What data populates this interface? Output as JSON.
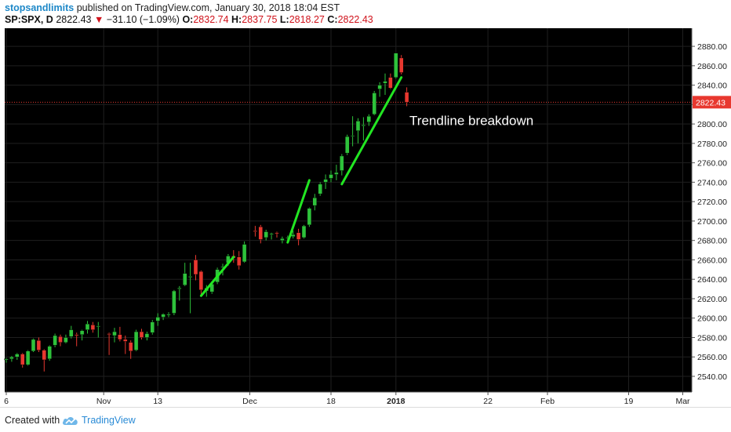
{
  "header": {
    "author": "stopsandlimits",
    "published": " published on TradingView.com, January 30, 2018 18:04 EST",
    "symbol": "SP:SPX, D",
    "last": "2822.43",
    "change_arrow": "▼",
    "change": "−31.10 (−1.09%)",
    "o_label": "O:",
    "o": "2832.74",
    "h_label": "H:",
    "h": "2837.75",
    "l_label": "L:",
    "l": "2818.27",
    "c_label": "C:",
    "c": "2822.43"
  },
  "footer": {
    "created_with": "Created with",
    "brand": "TradingView"
  },
  "colors": {
    "up": "#2ec23b",
    "down": "#e8382f",
    "trend": "#22e622",
    "bg": "#000000",
    "price_badge": "#e8382f"
  },
  "chart_data": {
    "type": "candlestick",
    "ylim": [
      2520,
      2890
    ],
    "yticks": [
      2540,
      2560,
      2580,
      2600,
      2620,
      2640,
      2660,
      2680,
      2700,
      2720,
      2740,
      2760,
      2780,
      2800,
      2820,
      2840,
      2860,
      2880
    ],
    "last_price": 2822.43,
    "last_price_label": "2822.43",
    "x_labels": [
      {
        "i": 0,
        "label": "6"
      },
      {
        "i": 18,
        "label": "Nov"
      },
      {
        "i": 28,
        "label": "13"
      },
      {
        "i": 45,
        "label": "Dec"
      },
      {
        "i": 60,
        "label": "18"
      },
      {
        "i": 72,
        "label": "2018"
      },
      {
        "i": 89,
        "label": "22"
      },
      {
        "i": 100,
        "label": "Feb"
      },
      {
        "i": 115,
        "label": "19"
      },
      {
        "i": 125,
        "label": "Mar"
      }
    ],
    "candles": [
      [
        2557,
        2559,
        2554,
        2558
      ],
      [
        2558,
        2561,
        2555,
        2560
      ],
      [
        2560,
        2564,
        2557,
        2563
      ],
      [
        2563,
        2564,
        2549,
        2552
      ],
      [
        2552,
        2567,
        2551,
        2566
      ],
      [
        2566,
        2579,
        2565,
        2578
      ],
      [
        2577,
        2580,
        2565,
        2567
      ],
      [
        2567,
        2568,
        2545,
        2557
      ],
      [
        2558,
        2572,
        2556,
        2571
      ],
      [
        2572,
        2584,
        2570,
        2582
      ],
      [
        2581,
        2583,
        2571,
        2575
      ],
      [
        2575,
        2583,
        2574,
        2580
      ],
      [
        2581,
        2592,
        2579,
        2588
      ],
      [
        2583,
        2585,
        2571,
        2582
      ],
      [
        2583,
        2588,
        2577,
        2587
      ],
      [
        2588,
        2597,
        2584,
        2594
      ],
      [
        2593,
        2596,
        2585,
        2588
      ],
      [
        2591,
        2596,
        2580,
        2592
      ],
      [
        2584,
        2585,
        2562,
        2583
      ],
      [
        2582,
        2590,
        2575,
        2586
      ],
      [
        2583,
        2591,
        2576,
        2578
      ],
      [
        2578,
        2582,
        2563,
        2576
      ],
      [
        2575,
        2577,
        2558,
        2566
      ],
      [
        2567,
        2588,
        2566,
        2586
      ],
      [
        2586,
        2589,
        2578,
        2580
      ],
      [
        2580,
        2586,
        2577,
        2584
      ],
      [
        2585,
        2598,
        2583,
        2596
      ],
      [
        2597,
        2605,
        2592,
        2601
      ],
      [
        2601,
        2605,
        2598,
        2604
      ],
      [
        2603,
        2606,
        2601,
        2604
      ],
      [
        2605,
        2629,
        2603,
        2628
      ],
      [
        2630,
        2633,
        2618,
        2631
      ],
      [
        2634,
        2657,
        2633,
        2646
      ],
      [
        2642,
        2657,
        2605,
        2643
      ],
      [
        2660,
        2665,
        2639,
        2645
      ],
      [
        2648,
        2649,
        2623,
        2629
      ],
      [
        2628,
        2634,
        2622,
        2631
      ],
      [
        2627,
        2638,
        2625,
        2635
      ],
      [
        2637,
        2652,
        2635,
        2650
      ],
      [
        2652,
        2656,
        2644,
        2653
      ],
      [
        2657,
        2666,
        2654,
        2664
      ],
      [
        2664,
        2670,
        2657,
        2662
      ],
      [
        2663,
        2669,
        2650,
        2654
      ],
      [
        2658,
        2679,
        2657,
        2676
      ],
      [
        2690,
        2695,
        2684,
        2689
      ],
      [
        2694,
        2696,
        2677,
        2681
      ],
      [
        2683,
        2691,
        2680,
        2689
      ],
      [
        2686,
        2688,
        2681,
        2687
      ],
      [
        2688,
        2689,
        2683,
        2687
      ],
      [
        2680,
        2684,
        2677,
        2682
      ],
      [
        2683,
        2685,
        2680,
        2683
      ],
      [
        2684,
        2690,
        2682,
        2686
      ],
      [
        2688,
        2692,
        2675,
        2681
      ],
      [
        2683,
        2696,
        2682,
        2695
      ],
      [
        2696,
        2714,
        2694,
        2713
      ],
      [
        2716,
        2728,
        2711,
        2724
      ],
      [
        2728,
        2740,
        2726,
        2738
      ],
      [
        2740,
        2748,
        2733,
        2743
      ],
      [
        2744,
        2752,
        2740,
        2748
      ],
      [
        2748,
        2758,
        2742,
        2750
      ],
      [
        2752,
        2769,
        2747,
        2767
      ],
      [
        2770,
        2789,
        2768,
        2787
      ],
      [
        2788,
        2808,
        2777,
        2788
      ],
      [
        2793,
        2806,
        2780,
        2803
      ],
      [
        2798,
        2807,
        2783,
        2799
      ],
      [
        2802,
        2810,
        2798,
        2808
      ],
      [
        2810,
        2834,
        2809,
        2832
      ],
      [
        2836,
        2843,
        2828,
        2840
      ],
      [
        2842,
        2852,
        2830,
        2844
      ],
      [
        2848,
        2852,
        2836,
        2837
      ],
      [
        2848,
        2873,
        2847,
        2873
      ],
      [
        2868,
        2871,
        2851,
        2853
      ],
      [
        2832.74,
        2837.75,
        2818.27,
        2822.43
      ]
    ],
    "candle_days": [
      0,
      1,
      2,
      3,
      4,
      5,
      6,
      7,
      8,
      9,
      10,
      11,
      12,
      13,
      14,
      15,
      16,
      17,
      19,
      20,
      21,
      22,
      23,
      24,
      25,
      26,
      27,
      28,
      29,
      30,
      31,
      32,
      33,
      34,
      35,
      36,
      37,
      38,
      39,
      40,
      41,
      42,
      43,
      44,
      46,
      47,
      48,
      49,
      50,
      51,
      52,
      53,
      54,
      55,
      56,
      57,
      58,
      59,
      60,
      61,
      62,
      63,
      64,
      65,
      66,
      67,
      68,
      69,
      70,
      71,
      72,
      73,
      74
    ],
    "trendlines": [
      [
        [
          36,
          2623
        ],
        [
          42,
          2663
        ]
      ],
      [
        [
          52,
          2678
        ],
        [
          56,
          2742
        ]
      ],
      [
        [
          62,
          2738
        ],
        [
          73,
          2848
        ]
      ]
    ],
    "annotations": [
      {
        "text": "Trendline breakdown",
        "at": [
          74.5,
          2799
        ]
      }
    ]
  }
}
